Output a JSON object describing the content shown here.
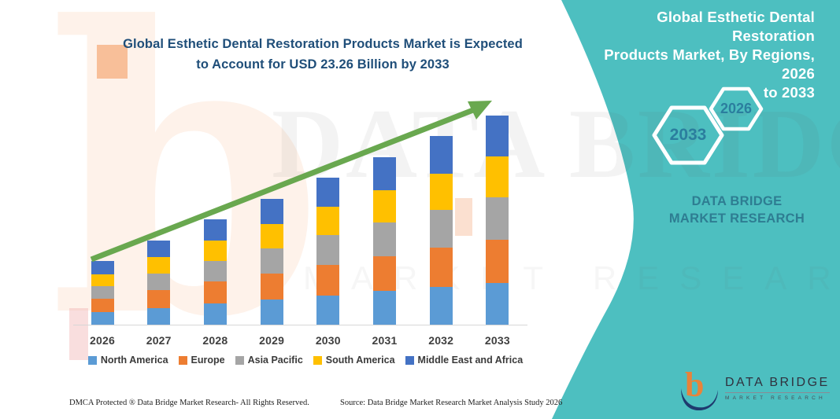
{
  "header": {
    "title_line1": "Global Esthetic Dental Restoration Products Market is Expected",
    "title_line2": "to Account for USD 23.26 Billion by 2033"
  },
  "side_panel": {
    "panel_color": "#4DBFC0",
    "title_line1": "Global Esthetic Dental Restoration",
    "title_line2": "Products Market, By Regions, 2026",
    "title_line3": "to 2033",
    "hexagon_large": "2033",
    "hexagon_small": "2026",
    "brand_text": "DATA BRIDGE MARKET RESEARCH"
  },
  "watermark": {
    "letter": "b",
    "line1": "DATA BRIDGE",
    "line2": "MARKET RESEARCH"
  },
  "chart_data": {
    "type": "bar",
    "stacked": true,
    "title": "Global Esthetic Dental Restoration Products Market is Expected to Account for USD 23.26 Billion by 2033",
    "unit": "USD Billion",
    "categories": [
      "2026",
      "2027",
      "2028",
      "2029",
      "2030",
      "2031",
      "2032",
      "2033"
    ],
    "series": [
      {
        "name": "North America",
        "color": "#5B9BD5",
        "values": [
          1.4,
          1.86,
          2.33,
          2.79,
          3.26,
          3.72,
          4.19,
          4.65
        ]
      },
      {
        "name": "Europe",
        "color": "#ED7D31",
        "values": [
          1.5,
          1.97,
          2.44,
          2.91,
          3.39,
          3.86,
          4.33,
          4.8
        ]
      },
      {
        "name": "Asia Pacific",
        "color": "#A5A5A5",
        "values": [
          1.38,
          1.85,
          2.33,
          2.8,
          3.28,
          3.75,
          4.23,
          4.7
        ]
      },
      {
        "name": "South America",
        "color": "#FFC000",
        "values": [
          1.35,
          1.8,
          2.25,
          2.7,
          3.16,
          3.61,
          4.06,
          4.51
        ]
      },
      {
        "name": "Middle East and Africa",
        "color": "#4472C4",
        "values": [
          1.42,
          1.87,
          2.33,
          2.78,
          3.24,
          3.69,
          4.15,
          4.6
        ]
      }
    ],
    "totals": [
      7.05,
      9.35,
      11.68,
      13.98,
      16.33,
      18.63,
      20.96,
      23.26
    ],
    "ylim": [
      0,
      23.26
    ],
    "grid": false,
    "legend_position": "bottom",
    "arrow_color": "#69A84F",
    "annotation": "upward growth trend arrow from 2026 to 2033"
  },
  "footer": {
    "left": "DMCA Protected ® Data Bridge Market Research- All Rights Reserved.",
    "source": "Source: Data Bridge Market Research Market Analysis Study 2026"
  },
  "logo": {
    "name": "DATA BRIDGE",
    "subtitle": "MARKET RESEARCH"
  }
}
